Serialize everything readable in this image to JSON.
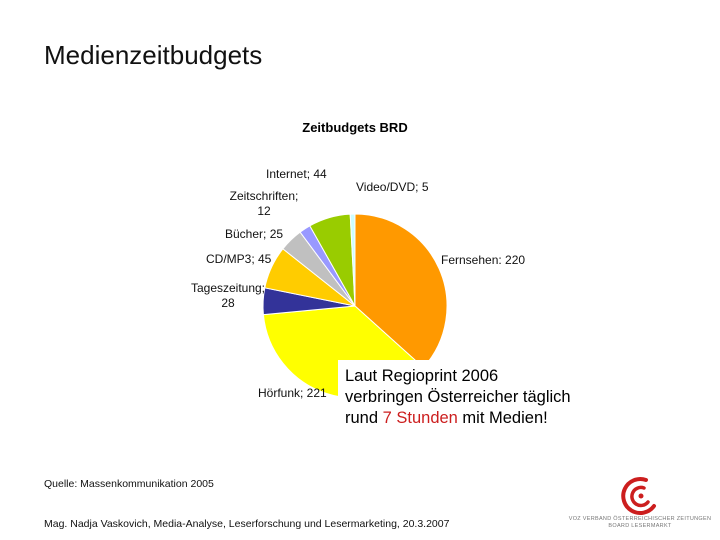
{
  "slide": {
    "title": "Medienzeitbudgets",
    "callout": {
      "line1": "Laut Regioprint 2006",
      "line2": "verbringen Österreicher täglich",
      "line3_pre": "rund ",
      "line3_highlight": "7 Stunden",
      "line3_post": " mit Medien!",
      "highlight_color": "#cc1e1e"
    },
    "source": "Quelle: Massenkommunikation 2005",
    "footer": "Mag. Nadja Vaskovich, Media-Analyse, Leserforschung und Lesermarketing, 20.3.2007",
    "logo_text_line1": "VOZ VERBAND ÖSTERREICHISCHER ZEITUNGEN",
    "logo_text_line2": "BOARD LESERMARKT"
  },
  "chart_data": {
    "type": "pie",
    "title": "Zeitbudgets BRD",
    "slices": [
      {
        "name": "Fernsehen",
        "value": 220,
        "label": "Fernsehen: 220",
        "color": "#ff9900"
      },
      {
        "name": "Hörfunk",
        "value": 221,
        "label": "Hörfunk; 221",
        "color": "#ffff00"
      },
      {
        "name": "Tageszeitung",
        "value": 28,
        "label_line1": "Tageszeitung;",
        "label_line2": "28",
        "color": "#333399"
      },
      {
        "name": "CD/MP3",
        "value": 45,
        "label": "CD/MP3; 45",
        "color": "#ffcc00"
      },
      {
        "name": "Bücher",
        "value": 25,
        "label": "Bücher; 25",
        "color": "#c0c0c0"
      },
      {
        "name": "Zeitschriften",
        "value": 12,
        "label_line1": "Zeitschriften;",
        "label_line2": "12",
        "color": "#9999ff"
      },
      {
        "name": "Internet",
        "value": 44,
        "label": "Internet; 44",
        "color": "#99cc00"
      },
      {
        "name": "Video/DVD",
        "value": 5,
        "label": "Video/DVD; 5",
        "color": "#ccffff"
      }
    ],
    "start_angle_deg": 0,
    "direction": "clockwise"
  }
}
